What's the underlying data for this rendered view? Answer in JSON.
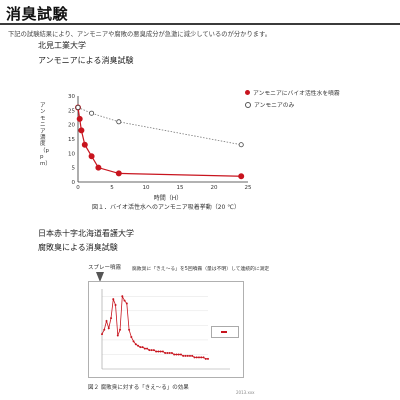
{
  "page": {
    "title": "消臭試験",
    "intro": "下記の試験結果により、アンモニアや腐敗の悪臭成分が急激に減少しているのが分かります。"
  },
  "section1": {
    "institution": "北見工業大学",
    "subtitle": "アンモニアによる消臭試験",
    "caption": "図１．バイオ活性水へのアンモニア吸着挙動（20 ℃）"
  },
  "section2": {
    "institution": "日本赤十字北海道看護大学",
    "subtitle": "腐敗臭による消臭試験",
    "caption": "図２ 腐敗臭に対する「きえ～る」の効果",
    "annot_spray": "スプレー噴霧",
    "annot_text": "腐敗臭に「きえ～る」を5回噴霧（量は不明）して連続的に測定",
    "corner_note": "2013.xxx"
  },
  "chart_data": [
    {
      "type": "scatter",
      "title": "",
      "xlabel": "時間（H）",
      "ylabel": "アンモニア濃度（ppm）",
      "xlim": [
        0,
        25
      ],
      "ylim": [
        0,
        30
      ],
      "xticks": [
        0,
        5,
        10,
        15,
        20,
        25
      ],
      "yticks": [
        0,
        5,
        10,
        15,
        20,
        25,
        30
      ],
      "legend_position": "top-right",
      "series": [
        {
          "name": "アンモニアにバイオ活性水を噴霧",
          "color": "#c8141e",
          "style": "solid-filled",
          "x": [
            0,
            0.25,
            0.5,
            1,
            2,
            3,
            6,
            24
          ],
          "y": [
            26,
            22,
            18,
            13,
            9,
            5,
            3,
            2
          ]
        },
        {
          "name": "アンモニアのみ",
          "color": "#888888",
          "style": "dotted-hollow",
          "x": [
            0,
            2,
            6,
            24
          ],
          "y": [
            26,
            24,
            21,
            13
          ]
        }
      ]
    },
    {
      "type": "line",
      "title": "",
      "xlabel": "",
      "ylabel": "",
      "legend_position": "top-right",
      "legend_label": "",
      "series": [
        {
          "name": "",
          "color": "#c8141e",
          "values": [
            24,
            27,
            33,
            28,
            35,
            48,
            44,
            23,
            27,
            50,
            47,
            45,
            27,
            22,
            19,
            17,
            16,
            15,
            15,
            14,
            14,
            13,
            13,
            13,
            12,
            12,
            12,
            12,
            11,
            11,
            11,
            11,
            10,
            10,
            10,
            10,
            9,
            9,
            9,
            9,
            9,
            8,
            8,
            8,
            8,
            8,
            7,
            7
          ]
        }
      ]
    }
  ]
}
